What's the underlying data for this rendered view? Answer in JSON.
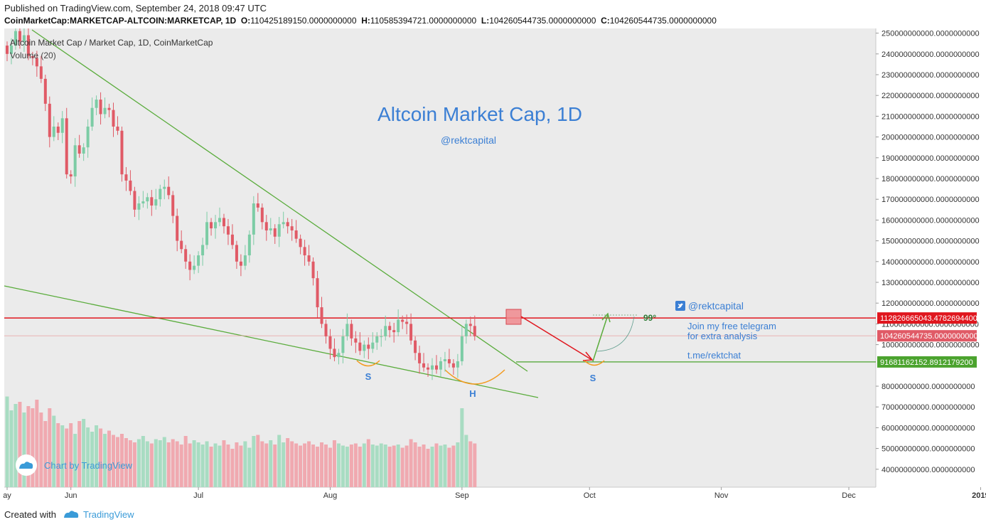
{
  "header": {
    "published": "Published on TradingView.com, September 24, 2018 09:47 UTC",
    "symbol": "CoinMarketCap:MARKETCAP-ALTCOIN:MARKETCAP, 1D",
    "o_label": "O:",
    "o_value": "110425189150.0000000000",
    "h_label": "H:",
    "h_value": "110585394721.0000000000",
    "l_label": "L:",
    "l_value": "104260544735.0000000000",
    "c_label": "C:",
    "c_value": "104260544735.0000000000"
  },
  "legend": {
    "series": "Altcoin Market Cap / Market Cap, 1D, CoinMarketCap",
    "volume": "Volume (20)"
  },
  "annotations": {
    "title": "Altcoin Market Cap, 1D",
    "handle": "@rektcapital",
    "twitter": "@rektcapital",
    "telegram_line1": "Join my free telegram",
    "telegram_line2": "for extra analysis",
    "telegram_link": "t.me/rektchat",
    "angle": "99°",
    "left_shoulder": "S",
    "head": "H",
    "right_shoulder": "S"
  },
  "price_tags": {
    "resistance": "112826665043.4782694400",
    "last": "104260544735.0000000000",
    "target": "91681162152.8912179200"
  },
  "watermark": "Chart by TradingView",
  "footer": {
    "created": "Created with",
    "brand": "TradingView"
  },
  "colors": {
    "up": "#7ccca5",
    "down": "#e05a66",
    "resistance": "#e0161e",
    "trend": "#5aac3c",
    "target": "#4ba32e",
    "text_blue": "#3b7fd4"
  },
  "chart_data": {
    "type": "candlestick",
    "y_ticks": [
      "250000000000.0000000000",
      "240000000000.0000000000",
      "230000000000.0000000000",
      "220000000000.0000000000",
      "210000000000.0000000000",
      "200000000000.0000000000",
      "190000000000.0000000000",
      "180000000000.0000000000",
      "170000000000.0000000000",
      "160000000000.0000000000",
      "150000000000.0000000000",
      "140000000000.0000000000",
      "130000000000.0000000000",
      "120000000000.0000000000",
      "110000000000.0000000000",
      "100000000000.0000000000",
      "80000000000.0000000000",
      "70000000000.0000000000",
      "60000000000.0000000000",
      "50000000000.0000000000",
      "40000000000.0000000000"
    ],
    "x_ticks": [
      "ay",
      "Jun",
      "Jul",
      "Aug",
      "Sep",
      "Oct",
      "Nov",
      "Dec",
      "2019"
    ],
    "ylim": [
      35000000000,
      252000000000
    ],
    "x_start": "2018-05-17",
    "closes": [
      240,
      244,
      251,
      246,
      249,
      239,
      238,
      234,
      228,
      216,
      200,
      205,
      202,
      209,
      182,
      181,
      196,
      192,
      195,
      205,
      214,
      218,
      211,
      214,
      213,
      205,
      203,
      182,
      179,
      174,
      165,
      168,
      169,
      171,
      167,
      170,
      175,
      176,
      172,
      162,
      150,
      146,
      140,
      136,
      138,
      143,
      148,
      159,
      156,
      159,
      161,
      157,
      153,
      148,
      140,
      138,
      143,
      153,
      168,
      166,
      159,
      155,
      156,
      152,
      158,
      159,
      157,
      155,
      151,
      147,
      143,
      140,
      132,
      118,
      110,
      104,
      98,
      94,
      96,
      104,
      110,
      103,
      101,
      97,
      100,
      98,
      101,
      104,
      104,
      109,
      107,
      106,
      112,
      111,
      110,
      102,
      96,
      91,
      89,
      88,
      90,
      88,
      92,
      93,
      91,
      89,
      92,
      104,
      110,
      109,
      104
    ],
    "volume_weights": [
      0.85,
      0.72,
      0.78,
      0.8,
      0.7,
      0.76,
      0.74,
      0.82,
      0.7,
      0.62,
      0.74,
      0.67,
      0.6,
      0.58,
      0.55,
      0.6,
      0.5,
      0.62,
      0.64,
      0.56,
      0.52,
      0.58,
      0.55,
      0.5,
      0.53,
      0.49,
      0.47,
      0.5,
      0.46,
      0.44,
      0.42,
      0.45,
      0.48,
      0.43,
      0.41,
      0.45,
      0.44,
      0.47,
      0.42,
      0.45,
      0.43,
      0.4,
      0.48,
      0.41,
      0.44,
      0.42,
      0.4,
      0.43,
      0.38,
      0.41,
      0.39,
      0.44,
      0.4,
      0.36,
      0.42,
      0.39,
      0.43,
      0.37,
      0.48,
      0.49,
      0.43,
      0.41,
      0.44,
      0.4,
      0.49,
      0.42,
      0.46,
      0.43,
      0.41,
      0.39,
      0.41,
      0.43,
      0.4,
      0.38,
      0.42,
      0.4,
      0.37,
      0.44,
      0.41,
      0.39,
      0.38,
      0.4,
      0.41,
      0.38,
      0.41,
      0.45,
      0.4,
      0.39,
      0.41,
      0.4,
      0.38,
      0.39,
      0.4,
      0.37,
      0.39,
      0.45,
      0.42,
      0.38,
      0.4,
      0.36,
      0.38,
      0.41,
      0.39,
      0.4,
      0.37,
      0.39,
      0.42,
      0.74,
      0.49,
      0.43,
      0.41
    ],
    "levels": {
      "resistance": 112826665043,
      "last": 104260544735,
      "target": 91681162152
    }
  }
}
